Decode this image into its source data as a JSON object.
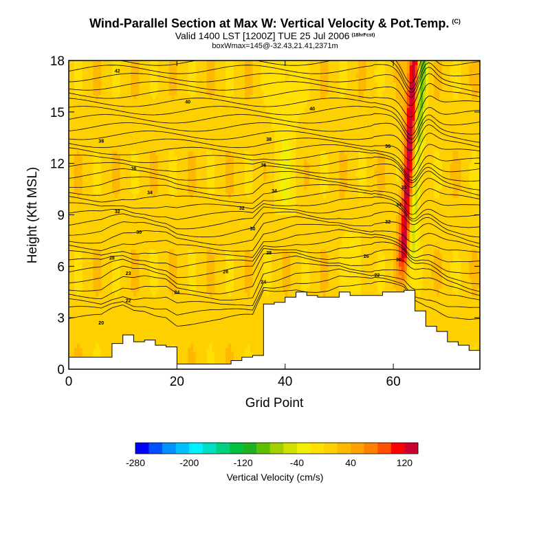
{
  "header": {
    "title": "Wind-Parallel Section at Max W: Vertical Velocity & Pot.Temp.",
    "copyright": "(C)",
    "valid_line": "Valid 1400 LST [1200Z] TUE 25 Jul 2006",
    "forecast_tag": "(18hrFcst)",
    "boxmax_line": "boxWmax=145@-32.43,21.41,2371m"
  },
  "chart_data": {
    "type": "heatmap",
    "title": "Wind-Parallel Section at Max W: Vertical Velocity & Pot.Temp.",
    "xlabel": "Grid Point",
    "ylabel": "Height (Kft MSL)",
    "xlim": [
      0,
      76
    ],
    "ylim": [
      0,
      18
    ],
    "x_ticks": [
      0,
      20,
      40,
      60
    ],
    "y_ticks": [
      0,
      3,
      6,
      9,
      12,
      15,
      18
    ],
    "colorbar": {
      "label": "Vertical Velocity (cm/s)",
      "tick_labels": [
        "-280",
        "-200",
        "-120",
        "-40",
        "40",
        "120"
      ],
      "bins": [
        -280,
        -260,
        -240,
        -220,
        -200,
        -180,
        -160,
        -140,
        -120,
        -100,
        -80,
        -60,
        -40,
        -20,
        0,
        20,
        40,
        60,
        80,
        100,
        120,
        140
      ],
      "colors": [
        "#0000ff",
        "#0050ff",
        "#0090ff",
        "#00c0ff",
        "#00f0ff",
        "#00e0c0",
        "#00d080",
        "#00c040",
        "#20b020",
        "#60c000",
        "#a0d000",
        "#d0e000",
        "#f0f000",
        "#ffe000",
        "#ffd000",
        "#ffb800",
        "#ffa000",
        "#ff8000",
        "#ff5000",
        "#ff0000",
        "#cc0030"
      ]
    },
    "velocity_field_cm_s": {
      "background": 10,
      "updraft_core": 120,
      "updraft_peak": 145,
      "downdraft_core": -120,
      "weak_downdraft_patches": -30
    },
    "terrain_kft": {
      "x": [
        0,
        2,
        4,
        6,
        8,
        10,
        12,
        14,
        16,
        18,
        20,
        22,
        24,
        26,
        28,
        30,
        32,
        34,
        36,
        38,
        40,
        42,
        44,
        46,
        48,
        50,
        52,
        54,
        56,
        58,
        60,
        62,
        64,
        66,
        68,
        70,
        72,
        74,
        76
      ],
      "height": [
        0.7,
        0.7,
        0.7,
        0.7,
        1.5,
        2.0,
        1.6,
        1.7,
        1.4,
        1.3,
        0.3,
        0.3,
        0.3,
        0.3,
        0.3,
        0.5,
        0.7,
        0.8,
        3.8,
        3.9,
        4.2,
        4.5,
        4.3,
        4.2,
        4.2,
        4.5,
        4.3,
        4.3,
        4.3,
        4.5,
        4.5,
        4.6,
        3.4,
        2.5,
        2.2,
        1.6,
        1.4,
        1.1,
        1.0
      ]
    },
    "isentrope_labels": [
      {
        "x": 6,
        "y": 2.7,
        "label": "20"
      },
      {
        "x": 11,
        "y": 4.0,
        "label": "22"
      },
      {
        "x": 11,
        "y": 5.6,
        "label": "23"
      },
      {
        "x": 8,
        "y": 6.5,
        "label": "28"
      },
      {
        "x": 13,
        "y": 8.0,
        "label": "30"
      },
      {
        "x": 9,
        "y": 9.2,
        "label": "32"
      },
      {
        "x": 15,
        "y": 10.3,
        "label": "34"
      },
      {
        "x": 12,
        "y": 11.7,
        "label": "36"
      },
      {
        "x": 6,
        "y": 13.3,
        "label": "38"
      },
      {
        "x": 22,
        "y": 15.6,
        "label": "40"
      },
      {
        "x": 9,
        "y": 17.4,
        "label": "42"
      },
      {
        "x": 20,
        "y": 4.5,
        "label": "24"
      },
      {
        "x": 29,
        "y": 5.7,
        "label": "26"
      },
      {
        "x": 36,
        "y": 5.1,
        "label": "24"
      },
      {
        "x": 37,
        "y": 6.8,
        "label": "28"
      },
      {
        "x": 34,
        "y": 8.2,
        "label": "30"
      },
      {
        "x": 32,
        "y": 9.4,
        "label": "32"
      },
      {
        "x": 38,
        "y": 10.4,
        "label": "34"
      },
      {
        "x": 36,
        "y": 11.9,
        "label": "36"
      },
      {
        "x": 37,
        "y": 13.4,
        "label": "38"
      },
      {
        "x": 45,
        "y": 15.2,
        "label": "40"
      },
      {
        "x": 55,
        "y": 6.6,
        "label": "26"
      },
      {
        "x": 57,
        "y": 5.5,
        "label": "22"
      },
      {
        "x": 59,
        "y": 8.6,
        "label": "32"
      },
      {
        "x": 61,
        "y": 6.4,
        "label": "30"
      },
      {
        "x": 61,
        "y": 9.6,
        "label": "34"
      },
      {
        "x": 62,
        "y": 10.6,
        "label": "33"
      },
      {
        "x": 59,
        "y": 13.0,
        "label": "36"
      }
    ]
  }
}
